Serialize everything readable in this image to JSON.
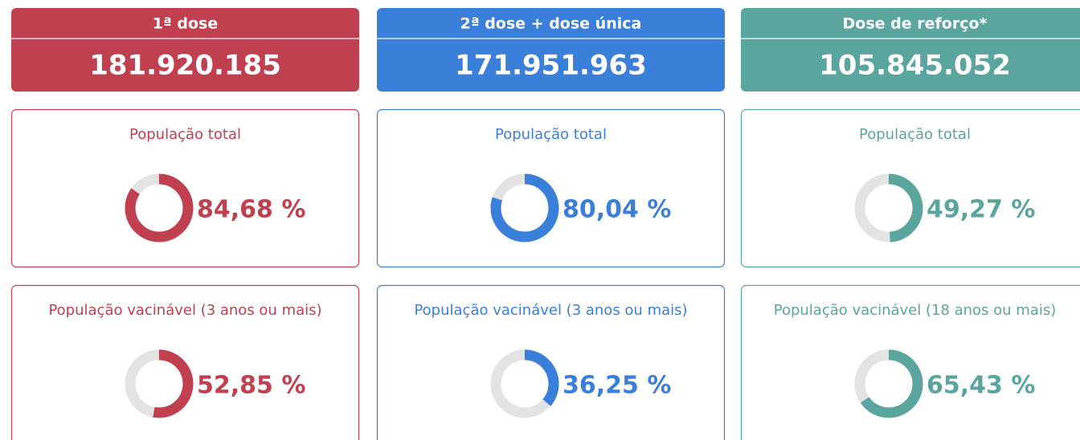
{
  "columns": [
    {
      "title": "1ª dose",
      "total": "181.920.185",
      "color": "#c0404f",
      "cards": [
        {
          "label": "População total",
          "percent": {
            "value": 84.68,
            "label": "84,68 %"
          }
        },
        {
          "label": "População vacinável (3 anos ou mais)",
          "percent": {
            "value": 52.85,
            "label": "52,85 %"
          }
        }
      ]
    },
    {
      "title": "2ª dose + dose única",
      "total": "171.951.963",
      "color": "#3a7fd9",
      "cards": [
        {
          "label": "População total",
          "percent": {
            "value": 80.04,
            "label": "80,04 %"
          }
        },
        {
          "label": "População vacinável (3 anos ou mais)",
          "percent": {
            "value": 36.25,
            "label": "36,25 %"
          }
        }
      ]
    },
    {
      "title": "Dose de reforço*",
      "total": "105.845.052",
      "color": "#5aa59d",
      "cards": [
        {
          "label": "População total",
          "percent": {
            "value": 49.27,
            "label": "49,27 %"
          }
        },
        {
          "label": "População vacinável (18 anos ou mais)",
          "percent": {
            "value": 65.43,
            "label": "65,43 %"
          }
        }
      ]
    }
  ]
}
